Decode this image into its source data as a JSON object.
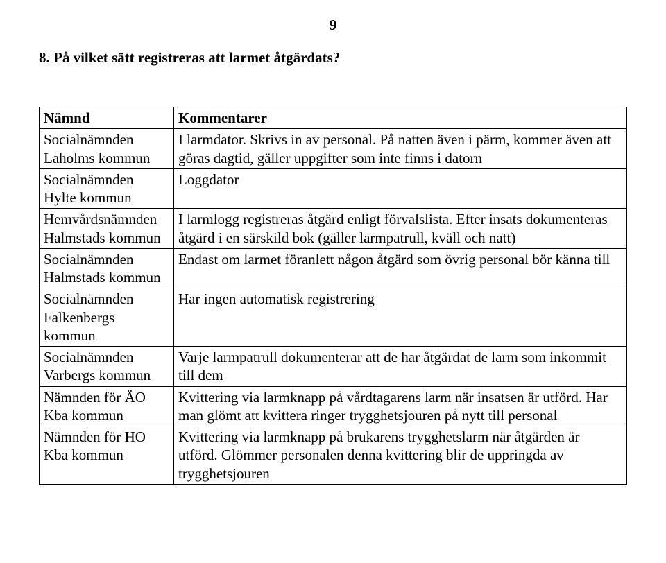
{
  "page_number": "9",
  "question": "8. På vilket sätt registreras att larmet åtgärdats?",
  "table": {
    "headers": {
      "col1": "Nämnd",
      "col2": "Kommentarer"
    },
    "rows": [
      {
        "namnd": "Socialnämnden Laholms kommun",
        "kommentar": "I larmdator. Skrivs in av personal. På natten även i pärm, kommer även att göras dagtid, gäller uppgifter som inte finns i datorn"
      },
      {
        "namnd": "Socialnämnden Hylte kommun",
        "kommentar": "Loggdator"
      },
      {
        "namnd": "Hemvårdsnämnden Halmstads kommun",
        "kommentar": "I larmlogg registreras åtgärd enligt förvalslista. Efter insats dokumenteras åtgärd i en särskild bok (gäller larmpatrull, kväll och natt)"
      },
      {
        "namnd": "Socialnämnden Halmstads kommun",
        "kommentar": "Endast om larmet föranlett någon åtgärd som övrig personal bör känna till"
      },
      {
        "namnd": "Socialnämnden Falkenbergs kommun",
        "kommentar": "Har ingen automatisk registrering"
      },
      {
        "namnd": "Socialnämnden Varbergs kommun",
        "kommentar": "Varje larmpatrull dokumenterar att de har åtgärdat de larm som inkommit till dem"
      },
      {
        "namnd": "Nämnden för ÄO Kba kommun",
        "kommentar": "Kvittering via larmknapp på vårdtagarens larm när insatsen är utförd. Har man glömt att kvittera ringer trygghetsjouren på nytt till personal"
      },
      {
        "namnd": "Nämnden för HO Kba kommun",
        "kommentar": "Kvittering via larmknapp på brukarens trygghetslarm när åtgärden är utförd. Glömmer personalen denna kvittering blir de uppringda av trygghetsjouren"
      }
    ]
  }
}
